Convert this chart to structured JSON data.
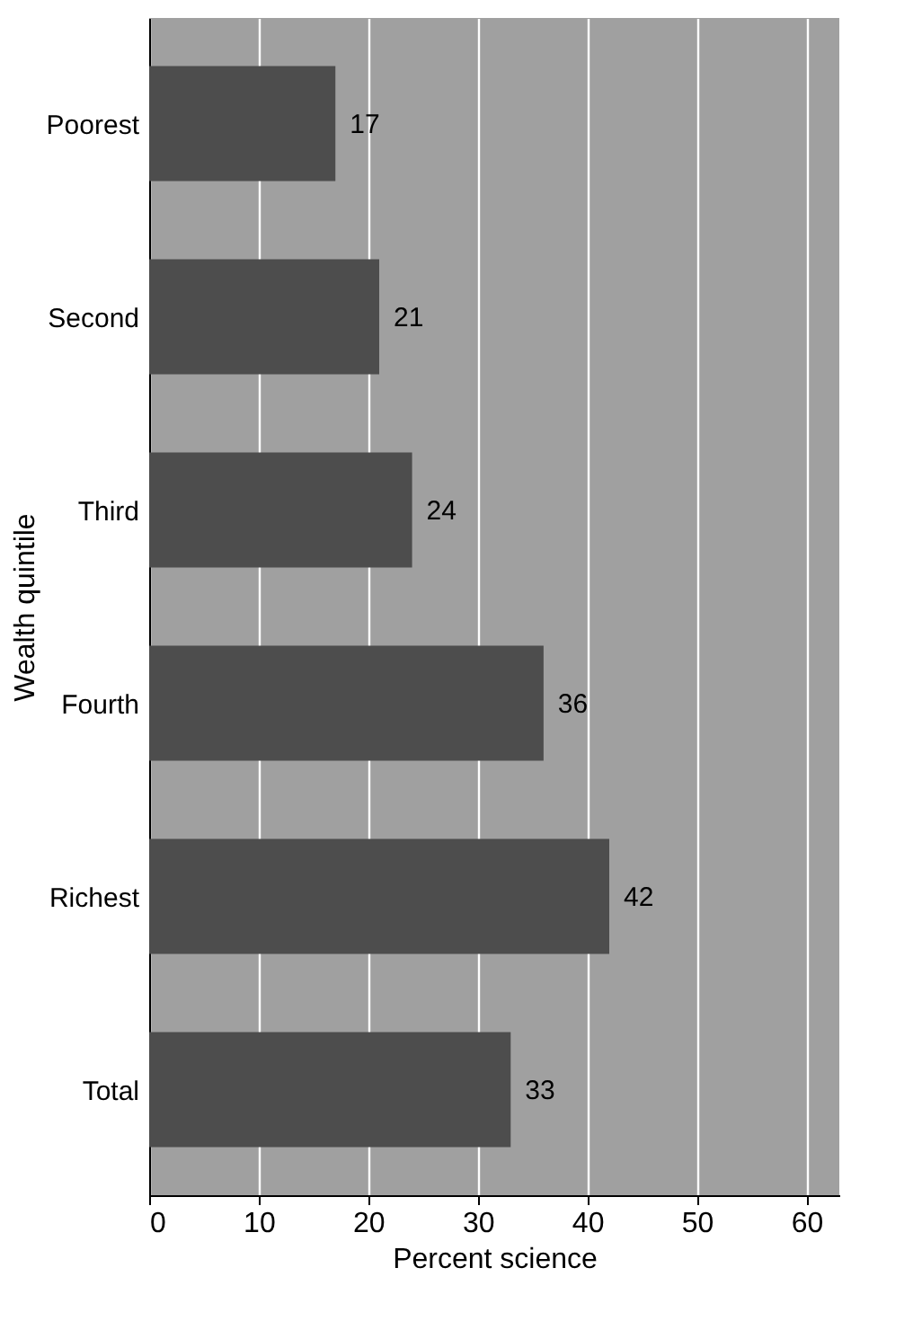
{
  "chart_data": {
    "type": "bar",
    "orientation": "horizontal",
    "categories": [
      "Poorest",
      "Second",
      "Third",
      "Fourth",
      "Richest",
      "Total"
    ],
    "values": [
      17,
      21,
      24,
      36,
      42,
      33
    ],
    "color": "#4d4d4d",
    "xlabel": "Percent science",
    "ylabel": "Wealth quintile",
    "xlim": [
      0,
      63
    ],
    "xticks": [
      0,
      10,
      20,
      30,
      40,
      50,
      60
    ],
    "grid": "x",
    "data_labels": true
  }
}
